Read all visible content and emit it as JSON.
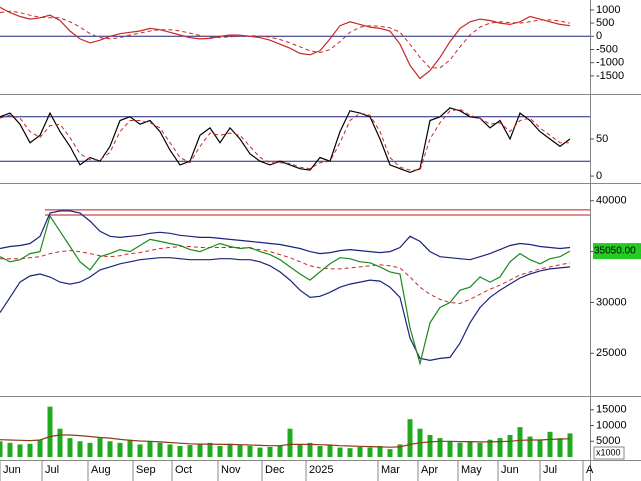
{
  "chart_data": [
    {
      "type": "line",
      "x": [
        0,
        1,
        2,
        3,
        4,
        5,
        6,
        7,
        8,
        9,
        10,
        11,
        12,
        13,
        14,
        15,
        16,
        17,
        18,
        19,
        20,
        21,
        22,
        23,
        24,
        25,
        26,
        27,
        28,
        29,
        30,
        31,
        32,
        33,
        34,
        35,
        36,
        37,
        38,
        39,
        40,
        41,
        42,
        43,
        44,
        45,
        46,
        47,
        48,
        49,
        50,
        51,
        52,
        53,
        54,
        55,
        56,
        57
      ],
      "xlim": [
        0,
        59
      ],
      "ylim": [
        -2150,
        1300
      ],
      "yticks": [
        -1500,
        -1000,
        -500,
        0,
        500,
        1000
      ],
      "reference_lines": [
        0
      ],
      "reference_color": "#1a237e",
      "series": [
        {
          "color": "#c62828",
          "dash": false,
          "values": [
            1100,
            900,
            750,
            650,
            700,
            800,
            600,
            200,
            -100,
            -250,
            -150,
            0,
            100,
            150,
            200,
            300,
            250,
            150,
            50,
            -50,
            -100,
            -80,
            0,
            50,
            40,
            0,
            -50,
            -150,
            -300,
            -450,
            -650,
            -700,
            -550,
            -100,
            400,
            550,
            450,
            350,
            300,
            200,
            -300,
            -1100,
            -1600,
            -1300,
            -800,
            -200,
            300,
            550,
            650,
            600,
            500,
            450,
            550,
            750,
            650,
            550,
            450,
            400
          ]
        },
        {
          "color": "#c62828",
          "dash": true,
          "values": [
            900,
            950,
            900,
            800,
            720,
            700,
            700,
            550,
            350,
            100,
            -50,
            -100,
            -50,
            50,
            120,
            200,
            250,
            250,
            200,
            120,
            30,
            -30,
            -50,
            -20,
            10,
            20,
            10,
            -30,
            -120,
            -250,
            -400,
            -550,
            -620,
            -500,
            -200,
            150,
            350,
            400,
            380,
            320,
            150,
            -300,
            -800,
            -1200,
            -1200,
            -900,
            -400,
            50,
            350,
            500,
            550,
            520,
            500,
            550,
            620,
            620,
            580,
            500
          ]
        }
      ]
    },
    {
      "type": "line",
      "x": [
        0,
        1,
        2,
        3,
        4,
        5,
        6,
        7,
        8,
        9,
        10,
        11,
        12,
        13,
        14,
        15,
        16,
        17,
        18,
        19,
        20,
        21,
        22,
        23,
        24,
        25,
        26,
        27,
        28,
        29,
        30,
        31,
        32,
        33,
        34,
        35,
        36,
        37,
        38,
        39,
        40,
        41,
        42,
        43,
        44,
        45,
        46,
        47,
        48,
        49,
        50,
        51,
        52,
        53,
        54,
        55,
        56,
        57
      ],
      "xlim": [
        0,
        59
      ],
      "ylim": [
        -8,
        108
      ],
      "yticks": [
        0,
        50
      ],
      "reference_lines": [
        80,
        20
      ],
      "reference_color": "#1a237e",
      "series": [
        {
          "color": "#000000",
          "dash": false,
          "values": [
            80,
            85,
            70,
            45,
            55,
            85,
            60,
            40,
            15,
            25,
            20,
            40,
            75,
            80,
            70,
            75,
            60,
            35,
            15,
            20,
            55,
            65,
            45,
            65,
            50,
            30,
            20,
            15,
            20,
            15,
            10,
            8,
            25,
            20,
            60,
            88,
            85,
            80,
            50,
            15,
            10,
            5,
            10,
            75,
            80,
            92,
            88,
            80,
            78,
            65,
            75,
            50,
            85,
            75,
            60,
            50,
            40,
            50
          ]
        },
        {
          "color": "#c62828",
          "dash": true,
          "values": [
            78,
            82,
            78,
            60,
            52,
            68,
            70,
            52,
            30,
            22,
            22,
            32,
            60,
            75,
            75,
            72,
            65,
            45,
            25,
            18,
            40,
            58,
            55,
            58,
            55,
            40,
            25,
            18,
            18,
            17,
            12,
            10,
            18,
            20,
            45,
            75,
            85,
            82,
            60,
            25,
            12,
            8,
            8,
            50,
            72,
            88,
            90,
            82,
            78,
            70,
            72,
            60,
            75,
            78,
            65,
            55,
            45,
            45
          ]
        }
      ]
    },
    {
      "type": "line",
      "x": [
        0,
        1,
        2,
        3,
        4,
        5,
        6,
        7,
        8,
        9,
        10,
        11,
        12,
        13,
        14,
        15,
        16,
        17,
        18,
        19,
        20,
        21,
        22,
        23,
        24,
        25,
        26,
        27,
        28,
        29,
        30,
        31,
        32,
        33,
        34,
        35,
        36,
        37,
        38,
        39,
        40,
        41,
        42,
        43,
        44,
        45,
        46,
        47,
        48,
        49,
        50,
        51,
        52,
        53,
        54,
        55,
        56,
        57
      ],
      "xlim": [
        0,
        59
      ],
      "ylim": [
        20900,
        41450
      ],
      "yticks": [
        25000,
        30000,
        35000,
        40000
      ],
      "reference_lines": [
        39100,
        38600
      ],
      "reference_color": "#b71c1c",
      "series": [
        {
          "color": "#1a237e",
          "dash": false,
          "values": [
            35300,
            35500,
            35600,
            35800,
            36500,
            38800,
            39000,
            39000,
            38800,
            38000,
            37000,
            36500,
            36400,
            36500,
            36600,
            36800,
            36900,
            36800,
            36600,
            36500,
            36400,
            36400,
            36300,
            36200,
            36100,
            36000,
            35900,
            35800,
            35700,
            35500,
            35300,
            35000,
            34800,
            34900,
            35100,
            35200,
            35100,
            35000,
            34900,
            35000,
            35400,
            36500,
            36000,
            35000,
            34500,
            34400,
            34300,
            34200,
            34500,
            34800,
            35200,
            35600,
            35800,
            35700,
            35500,
            35400,
            35300,
            35400
          ]
        },
        {
          "color": "#1a237e",
          "dash": false,
          "values": [
            29000,
            30500,
            32000,
            32600,
            32800,
            32500,
            32000,
            31800,
            32000,
            32500,
            33200,
            33500,
            33800,
            34000,
            34200,
            34300,
            34400,
            34400,
            34300,
            34200,
            34200,
            34200,
            34300,
            34300,
            34200,
            34200,
            34000,
            33600,
            33000,
            32200,
            31200,
            30500,
            30600,
            31000,
            31500,
            31800,
            32000,
            32200,
            32100,
            31500,
            30500,
            26500,
            24500,
            24300,
            24500,
            24600,
            26000,
            28000,
            29500,
            30500,
            31200,
            31800,
            32400,
            32800,
            33100,
            33300,
            33400,
            33500
          ]
        },
        {
          "color": "#c62828",
          "dash": true,
          "values": [
            34300,
            34300,
            34300,
            34400,
            34500,
            34800,
            35000,
            35100,
            35000,
            34800,
            34600,
            34500,
            34600,
            34800,
            34900,
            35100,
            35300,
            35400,
            35500,
            35500,
            35400,
            35400,
            35400,
            35400,
            35400,
            35300,
            35200,
            35000,
            34700,
            34400,
            34000,
            33600,
            33400,
            33300,
            33300,
            33400,
            33500,
            33600,
            33700,
            33600,
            33400,
            32500,
            31500,
            30800,
            30300,
            30000,
            29900,
            30300,
            30800,
            31300,
            31700,
            32200,
            32700,
            33000,
            33300,
            33500,
            33700,
            33900
          ]
        },
        {
          "color": "#1b8a1b",
          "dash": false,
          "values": [
            34500,
            34000,
            34200,
            34800,
            35000,
            38500,
            37000,
            35500,
            34000,
            33200,
            34500,
            34800,
            35200,
            35000,
            35600,
            36200,
            36000,
            35800,
            35600,
            35200,
            35000,
            35400,
            35800,
            35500,
            35300,
            35400,
            35000,
            34700,
            34200,
            33500,
            32800,
            32200,
            33000,
            33800,
            34400,
            34300,
            34000,
            33900,
            33500,
            33000,
            32800,
            27500,
            24000,
            28000,
            29500,
            30000,
            31200,
            31500,
            32500,
            32000,
            32500,
            34000,
            34800,
            34200,
            33800,
            34300,
            34500,
            35050
          ],
          "value_labels": [
            null,
            null,
            null,
            null,
            null,
            null,
            null,
            null,
            null,
            null,
            null,
            null,
            null,
            null,
            null,
            null,
            null,
            null,
            null,
            null,
            null,
            null,
            null,
            null,
            null,
            null,
            null,
            null,
            null,
            null,
            null,
            null,
            null,
            null,
            null,
            null,
            null,
            null,
            null,
            null,
            null,
            null,
            null,
            null,
            null,
            null,
            null,
            null,
            null,
            null,
            null,
            null,
            null,
            null,
            null,
            null,
            null,
            "35050.00"
          ]
        }
      ]
    },
    {
      "type": "bar",
      "x": [
        0,
        1,
        2,
        3,
        4,
        5,
        6,
        7,
        8,
        9,
        10,
        11,
        12,
        13,
        14,
        15,
        16,
        17,
        18,
        19,
        20,
        21,
        22,
        23,
        24,
        25,
        26,
        27,
        28,
        29,
        30,
        31,
        32,
        33,
        34,
        35,
        36,
        37,
        38,
        39,
        40,
        41,
        42,
        43,
        44,
        45,
        46,
        47,
        48,
        49,
        50,
        51,
        52,
        53,
        54,
        55,
        56,
        57
      ],
      "xlim": [
        0,
        59
      ],
      "ylim": [
        0,
        18750
      ],
      "yticks": [
        5000,
        10000,
        15000
      ],
      "unit_label": "x1000",
      "xticks": [
        {
          "value": 0,
          "label": "Jun"
        },
        {
          "value": 4.2,
          "label": "Jul"
        },
        {
          "value": 8.8,
          "label": "Aug"
        },
        {
          "value": 13.3,
          "label": "Sep"
        },
        {
          "value": 17.2,
          "label": "Oct"
        },
        {
          "value": 21.8,
          "label": "Nov"
        },
        {
          "value": 26.2,
          "label": "Dec"
        },
        {
          "value": 30.6,
          "label": "2025"
        },
        {
          "value": 37.8,
          "label": "Mar"
        },
        {
          "value": 41.8,
          "label": "Apr"
        },
        {
          "value": 45.8,
          "label": "May"
        },
        {
          "value": 49.8,
          "label": "Jun"
        },
        {
          "value": 54,
          "label": "Jul"
        },
        {
          "value": 58.3,
          "label": "A"
        }
      ],
      "color": "#1faa1f",
      "values": [
        5000,
        4500,
        4000,
        4200,
        5500,
        16000,
        9000,
        6000,
        5000,
        4500,
        6000,
        5000,
        4500,
        5500,
        4000,
        5000,
        4500,
        4000,
        3500,
        3800,
        4000,
        4500,
        3500,
        4200,
        3800,
        3500,
        3000,
        3200,
        3500,
        9000,
        4000,
        4500,
        3500,
        3800,
        3000,
        2800,
        3200,
        3000,
        3500,
        2500,
        4000,
        12000,
        9000,
        7000,
        6000,
        5000,
        4500,
        5000,
        4500,
        5500,
        6000,
        7000,
        9500,
        6500,
        5500,
        8000,
        6000,
        7500
      ],
      "series": [
        {
          "color": "#8d3b1b",
          "dash": false,
          "values": [
            5500,
            5400,
            5300,
            5200,
            5400,
            6500,
            7000,
            7000,
            6800,
            6500,
            6200,
            6000,
            5600,
            5300,
            5100,
            5000,
            4800,
            4600,
            4400,
            4200,
            4100,
            4100,
            4000,
            4000,
            3900,
            3800,
            3700,
            3600,
            3600,
            4000,
            4000,
            4000,
            3900,
            3800,
            3600,
            3500,
            3400,
            3300,
            3200,
            3100,
            3200,
            4000,
            4500,
            4800,
            5000,
            5000,
            4900,
            4900,
            4800,
            4800,
            4900,
            5000,
            5300,
            5400,
            5400,
            5600,
            5700,
            5800
          ]
        }
      ]
    }
  ]
}
